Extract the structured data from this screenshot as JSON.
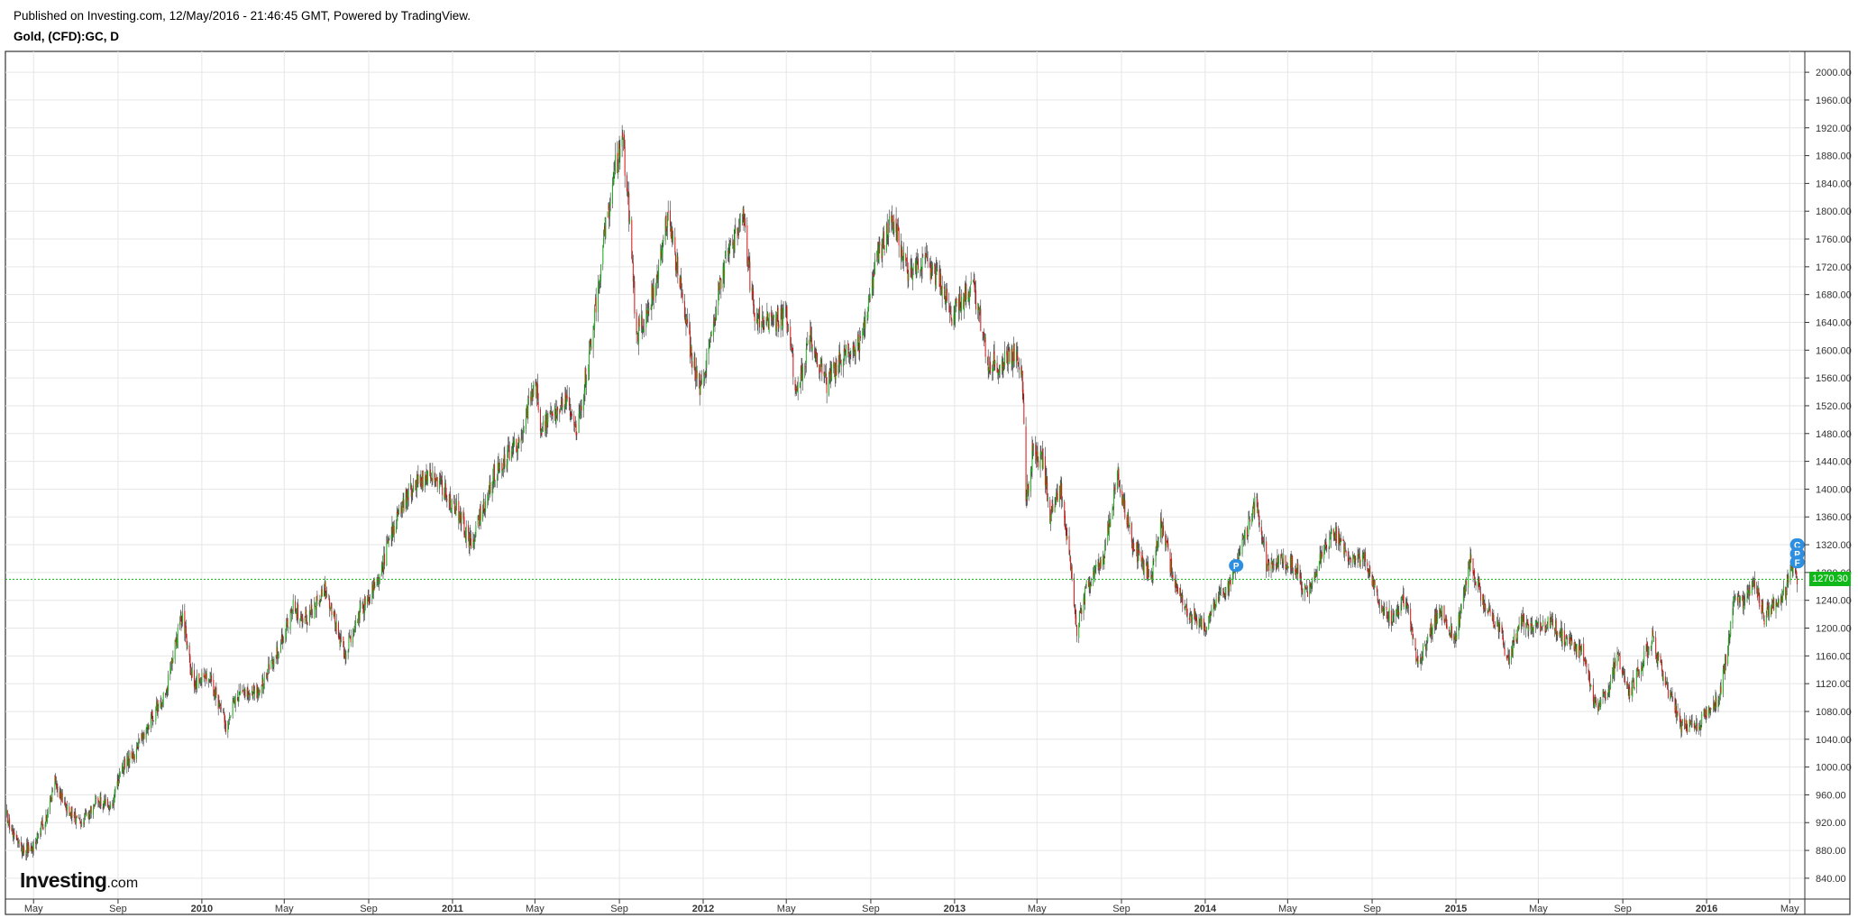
{
  "header": {
    "published": "Published on Investing.com, 12/May/2016 - 21:46:45 GMT, Powered by TradingView.",
    "symbol": "Gold, (CFD):GC, D"
  },
  "logo": {
    "main": "Investing",
    "suffix": ".com"
  },
  "colors": {
    "up": "#17b317",
    "down": "#e01515",
    "wick": "#333333",
    "grid": "#e6e6e6",
    "last_line": "#11b81a",
    "marker": "#2e8fe0"
  },
  "chart_data": {
    "type": "candlestick",
    "interval": "D",
    "ylim": [
      810,
      2030
    ],
    "xlim": [
      "2009-03-21",
      "2016-05-23"
    ],
    "y_ticks": [
      "840.00",
      "880.00",
      "920.00",
      "960.00",
      "1000.00",
      "1040.00",
      "1080.00",
      "1120.00",
      "1160.00",
      "1200.00",
      "1240.00",
      "1280.00",
      "1320.00",
      "1360.00",
      "1400.00",
      "1440.00",
      "1480.00",
      "1520.00",
      "1560.00",
      "1600.00",
      "1640.00",
      "1680.00",
      "1720.00",
      "1760.00",
      "1800.00",
      "1840.00",
      "1880.00",
      "1920.00",
      "1960.00",
      "2000.00"
    ],
    "x_ticks": [
      {
        "label": "May",
        "date": "2009-05-01"
      },
      {
        "label": "Sep",
        "date": "2009-09-01"
      },
      {
        "label": "2010",
        "date": "2010-01-01",
        "year": true
      },
      {
        "label": "May",
        "date": "2010-05-01"
      },
      {
        "label": "Sep",
        "date": "2010-09-01"
      },
      {
        "label": "2011",
        "date": "2011-01-01",
        "year": true
      },
      {
        "label": "May",
        "date": "2011-05-01"
      },
      {
        "label": "Sep",
        "date": "2011-09-01"
      },
      {
        "label": "2012",
        "date": "2012-01-01",
        "year": true
      },
      {
        "label": "May",
        "date": "2012-05-01"
      },
      {
        "label": "Sep",
        "date": "2012-09-01"
      },
      {
        "label": "2013",
        "date": "2013-01-01",
        "year": true
      },
      {
        "label": "May",
        "date": "2013-05-01"
      },
      {
        "label": "Sep",
        "date": "2013-09-01"
      },
      {
        "label": "2014",
        "date": "2014-01-01",
        "year": true
      },
      {
        "label": "May",
        "date": "2014-05-01"
      },
      {
        "label": "Sep",
        "date": "2014-09-01"
      },
      {
        "label": "2015",
        "date": "2015-01-01",
        "year": true
      },
      {
        "label": "May",
        "date": "2015-05-01"
      },
      {
        "label": "Sep",
        "date": "2015-09-01"
      },
      {
        "label": "2016",
        "date": "2016-01-01",
        "year": true
      },
      {
        "label": "May",
        "date": "2016-05-01"
      }
    ],
    "price_path": [
      [
        "2009-03-23",
        930
      ],
      [
        "2009-04-01",
        905
      ],
      [
        "2009-04-15",
        880
      ],
      [
        "2009-05-01",
        885
      ],
      [
        "2009-05-20",
        930
      ],
      [
        "2009-06-02",
        980
      ],
      [
        "2009-06-15",
        945
      ],
      [
        "2009-07-10",
        915
      ],
      [
        "2009-08-01",
        955
      ],
      [
        "2009-08-20",
        940
      ],
      [
        "2009-09-08",
        1000
      ],
      [
        "2009-09-25",
        1020
      ],
      [
        "2009-10-14",
        1060
      ],
      [
        "2009-11-10",
        1110
      ],
      [
        "2009-12-03",
        1220
      ],
      [
        "2009-12-20",
        1120
      ],
      [
        "2010-01-10",
        1135
      ],
      [
        "2010-02-05",
        1060
      ],
      [
        "2010-02-25",
        1110
      ],
      [
        "2010-03-20",
        1105
      ],
      [
        "2010-04-15",
        1150
      ],
      [
        "2010-05-14",
        1230
      ],
      [
        "2010-06-05",
        1210
      ],
      [
        "2010-06-28",
        1260
      ],
      [
        "2010-07-28",
        1160
      ],
      [
        "2010-08-20",
        1225
      ],
      [
        "2010-09-15",
        1270
      ],
      [
        "2010-10-15",
        1370
      ],
      [
        "2010-11-10",
        1410
      ],
      [
        "2010-12-07",
        1420
      ],
      [
        "2011-01-10",
        1365
      ],
      [
        "2011-01-28",
        1320
      ],
      [
        "2011-03-01",
        1420
      ],
      [
        "2011-04-10",
        1470
      ],
      [
        "2011-05-01",
        1560
      ],
      [
        "2011-05-10",
        1490
      ],
      [
        "2011-06-15",
        1530
      ],
      [
        "2011-07-01",
        1485
      ],
      [
        "2011-07-20",
        1600
      ],
      [
        "2011-08-10",
        1760
      ],
      [
        "2011-08-25",
        1860
      ],
      [
        "2011-09-06",
        1900
      ],
      [
        "2011-09-15",
        1800
      ],
      [
        "2011-09-26",
        1620
      ],
      [
        "2011-10-10",
        1650
      ],
      [
        "2011-10-25",
        1700
      ],
      [
        "2011-11-10",
        1790
      ],
      [
        "2011-11-28",
        1700
      ],
      [
        "2011-12-15",
        1590
      ],
      [
        "2011-12-29",
        1540
      ],
      [
        "2012-01-10",
        1610
      ],
      [
        "2012-01-30",
        1720
      ],
      [
        "2012-02-15",
        1760
      ],
      [
        "2012-02-28",
        1790
      ],
      [
        "2012-03-15",
        1650
      ],
      [
        "2012-04-10",
        1640
      ],
      [
        "2012-05-01",
        1650
      ],
      [
        "2012-05-16",
        1540
      ],
      [
        "2012-06-06",
        1620
      ],
      [
        "2012-06-28",
        1550
      ],
      [
        "2012-07-20",
        1590
      ],
      [
        "2012-08-15",
        1610
      ],
      [
        "2012-09-10",
        1730
      ],
      [
        "2012-10-04",
        1790
      ],
      [
        "2012-10-25",
        1710
      ],
      [
        "2012-11-15",
        1730
      ],
      [
        "2012-12-10",
        1700
      ],
      [
        "2012-12-28",
        1650
      ],
      [
        "2013-01-10",
        1670
      ],
      [
        "2013-01-28",
        1690
      ],
      [
        "2013-02-20",
        1580
      ],
      [
        "2013-03-10",
        1580
      ],
      [
        "2013-04-01",
        1600
      ],
      [
        "2013-04-10",
        1555
      ],
      [
        "2013-04-15",
        1380
      ],
      [
        "2013-04-24",
        1450
      ],
      [
        "2013-05-10",
        1440
      ],
      [
        "2013-05-20",
        1360
      ],
      [
        "2013-06-05",
        1400
      ],
      [
        "2013-06-20",
        1280
      ],
      [
        "2013-06-28",
        1200
      ],
      [
        "2013-07-10",
        1250
      ],
      [
        "2013-08-05",
        1300
      ],
      [
        "2013-08-27",
        1420
      ],
      [
        "2013-09-15",
        1330
      ],
      [
        "2013-10-01",
        1290
      ],
      [
        "2013-10-15",
        1275
      ],
      [
        "2013-10-28",
        1350
      ],
      [
        "2013-11-15",
        1275
      ],
      [
        "2013-12-05",
        1225
      ],
      [
        "2013-12-31",
        1200
      ],
      [
        "2014-01-20",
        1250
      ],
      [
        "2014-02-05",
        1260
      ],
      [
        "2014-02-28",
        1330
      ],
      [
        "2014-03-17",
        1385
      ],
      [
        "2014-04-01",
        1285
      ],
      [
        "2014-04-20",
        1295
      ],
      [
        "2014-05-10",
        1290
      ],
      [
        "2014-05-30",
        1245
      ],
      [
        "2014-06-20",
        1315
      ],
      [
        "2014-07-10",
        1335
      ],
      [
        "2014-08-01",
        1295
      ],
      [
        "2014-08-20",
        1300
      ],
      [
        "2014-09-10",
        1240
      ],
      [
        "2014-10-01",
        1210
      ],
      [
        "2014-10-20",
        1245
      ],
      [
        "2014-11-06",
        1145
      ],
      [
        "2014-11-25",
        1195
      ],
      [
        "2014-12-10",
        1225
      ],
      [
        "2014-12-31",
        1185
      ],
      [
        "2015-01-22",
        1300
      ],
      [
        "2015-02-10",
        1235
      ],
      [
        "2015-03-05",
        1200
      ],
      [
        "2015-03-18",
        1150
      ],
      [
        "2015-04-06",
        1215
      ],
      [
        "2015-04-28",
        1200
      ],
      [
        "2015-05-20",
        1210
      ],
      [
        "2015-06-10",
        1180
      ],
      [
        "2015-07-05",
        1165
      ],
      [
        "2015-07-24",
        1085
      ],
      [
        "2015-08-10",
        1110
      ],
      [
        "2015-08-24",
        1160
      ],
      [
        "2015-09-10",
        1105
      ],
      [
        "2015-10-14",
        1185
      ],
      [
        "2015-11-05",
        1110
      ],
      [
        "2015-11-25",
        1060
      ],
      [
        "2015-12-17",
        1055
      ],
      [
        "2016-01-05",
        1085
      ],
      [
        "2016-01-20",
        1100
      ],
      [
        "2016-02-11",
        1240
      ],
      [
        "2016-02-24",
        1235
      ],
      [
        "2016-03-10",
        1270
      ],
      [
        "2016-03-25",
        1215
      ],
      [
        "2016-04-10",
        1240
      ],
      [
        "2016-04-25",
        1250
      ],
      [
        "2016-05-02",
        1295
      ],
      [
        "2016-05-06",
        1290
      ],
      [
        "2016-05-12",
        1270.3
      ]
    ],
    "last_price": "1270.30",
    "markers": [
      {
        "date": "2014-02-15",
        "price": 1290,
        "label": "P"
      },
      {
        "date": "2016-05-12",
        "price": 1320,
        "label": "C"
      },
      {
        "date": "2016-05-12",
        "price": 1307,
        "label": "P"
      },
      {
        "date": "2016-05-12",
        "price": 1295,
        "label": "F"
      }
    ]
  }
}
